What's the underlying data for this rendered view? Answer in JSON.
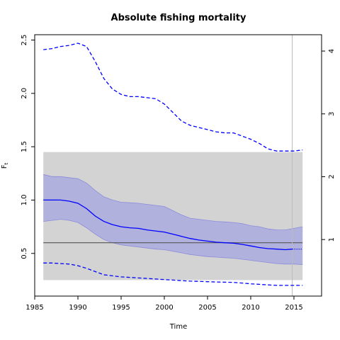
{
  "chart_data": {
    "type": "line",
    "title": "Absolute fishing mortality",
    "xlabel": "Time",
    "ylabel": "F",
    "ylabel_sub": "t",
    "xlim": [
      1985,
      2018.2
    ],
    "ylim": [
      0.1,
      2.55
    ],
    "y2lim": [
      0.1,
      4.26
    ],
    "x_ticks": [
      1985,
      1990,
      1995,
      2000,
      2005,
      2010,
      2015
    ],
    "y_ticks": [
      0.5,
      1.0,
      1.5,
      2.0,
      2.5
    ],
    "y_tick_labels": [
      "0.5",
      "1.0",
      "1.5",
      "2.0",
      "2.5"
    ],
    "y2_ticks": [
      1,
      2,
      3,
      4
    ],
    "gray_band": {
      "x": [
        1986,
        2016
      ],
      "y": [
        0.25,
        1.45
      ]
    },
    "reference_line": {
      "y": 0.6
    },
    "vertical_line": {
      "x": 2014.8
    },
    "series": [
      {
        "role": "estimate",
        "x": [
          1986,
          1987,
          1988,
          1989,
          1990,
          1991,
          1992,
          1993,
          1994,
          1995,
          1996,
          1997,
          1998,
          1999,
          2000,
          2001,
          2002,
          2003,
          2004,
          2005,
          2006,
          2007,
          2008,
          2009,
          2010,
          2011,
          2012,
          2013,
          2014,
          2014.8
        ],
        "values": [
          1.0,
          1.0,
          1.0,
          0.99,
          0.97,
          0.92,
          0.85,
          0.8,
          0.77,
          0.75,
          0.74,
          0.735,
          0.72,
          0.71,
          0.7,
          0.68,
          0.66,
          0.64,
          0.625,
          0.615,
          0.605,
          0.6,
          0.595,
          0.585,
          0.57,
          0.555,
          0.545,
          0.54,
          0.535,
          0.54
        ]
      },
      {
        "role": "estimate-projection",
        "x": [
          2014.8,
          2016
        ],
        "values": [
          0.54,
          0.54
        ]
      },
      {
        "role": "ci-upper",
        "x": [
          1986,
          1987,
          1988,
          1989,
          1990,
          1991,
          1992,
          1993,
          1994,
          1995,
          1996,
          1997,
          1998,
          1999,
          2000,
          2001,
          2002,
          2003,
          2004,
          2005,
          2006,
          2007,
          2008,
          2009,
          2010,
          2011,
          2012,
          2013,
          2014,
          2015,
          2016
        ],
        "values": [
          1.24,
          1.22,
          1.22,
          1.21,
          1.2,
          1.16,
          1.09,
          1.03,
          1.0,
          0.98,
          0.975,
          0.97,
          0.96,
          0.95,
          0.94,
          0.9,
          0.86,
          0.83,
          0.82,
          0.81,
          0.8,
          0.795,
          0.79,
          0.78,
          0.76,
          0.75,
          0.73,
          0.72,
          0.72,
          0.735,
          0.75
        ]
      },
      {
        "role": "ci-lower",
        "x": [
          1986,
          1987,
          1988,
          1989,
          1990,
          1991,
          1992,
          1993,
          1994,
          1995,
          1996,
          1997,
          1998,
          1999,
          2000,
          2001,
          2002,
          2003,
          2004,
          2005,
          2006,
          2007,
          2008,
          2009,
          2010,
          2011,
          2012,
          2013,
          2014,
          2015,
          2016
        ],
        "values": [
          0.8,
          0.81,
          0.82,
          0.81,
          0.79,
          0.74,
          0.68,
          0.63,
          0.6,
          0.58,
          0.57,
          0.56,
          0.55,
          0.54,
          0.535,
          0.52,
          0.505,
          0.49,
          0.48,
          0.47,
          0.465,
          0.46,
          0.455,
          0.445,
          0.435,
          0.425,
          0.415,
          0.405,
          0.4,
          0.4,
          0.395
        ]
      },
      {
        "role": "upper-dashed",
        "x": [
          1986,
          1987,
          1988,
          1989,
          1990,
          1991,
          1992,
          1993,
          1994,
          1995,
          1996,
          1997,
          1998,
          1999,
          2000,
          2001,
          2002,
          2003,
          2004,
          2005,
          2006,
          2007,
          2008,
          2009,
          2010,
          2011,
          2012,
          2013,
          2014,
          2015,
          2016
        ],
        "values": [
          2.41,
          2.42,
          2.44,
          2.45,
          2.47,
          2.44,
          2.3,
          2.14,
          2.04,
          1.99,
          1.97,
          1.97,
          1.96,
          1.95,
          1.9,
          1.82,
          1.74,
          1.7,
          1.68,
          1.66,
          1.64,
          1.63,
          1.63,
          1.6,
          1.57,
          1.53,
          1.48,
          1.46,
          1.46,
          1.46,
          1.47
        ]
      },
      {
        "role": "lower-dashed",
        "x": [
          1986,
          1987,
          1988,
          1989,
          1990,
          1991,
          1992,
          1993,
          1994,
          1995,
          1996,
          1997,
          1998,
          1999,
          2000,
          2001,
          2002,
          2003,
          2004,
          2005,
          2006,
          2007,
          2008,
          2009,
          2010,
          2011,
          2012,
          2013,
          2014,
          2015,
          2016
        ],
        "values": [
          0.41,
          0.41,
          0.405,
          0.4,
          0.385,
          0.36,
          0.33,
          0.3,
          0.29,
          0.28,
          0.275,
          0.27,
          0.265,
          0.26,
          0.255,
          0.25,
          0.245,
          0.24,
          0.238,
          0.235,
          0.232,
          0.23,
          0.228,
          0.222,
          0.215,
          0.21,
          0.205,
          0.2,
          0.2,
          0.2,
          0.2
        ]
      }
    ],
    "colors": {
      "line": "#0000ff",
      "ci_fill": "#aaaade",
      "ci_edge": "#8c8cdc",
      "gray_band": "#d3d3d3",
      "reference_line": "#555555",
      "vertical_line": "#bbbbbb"
    }
  }
}
